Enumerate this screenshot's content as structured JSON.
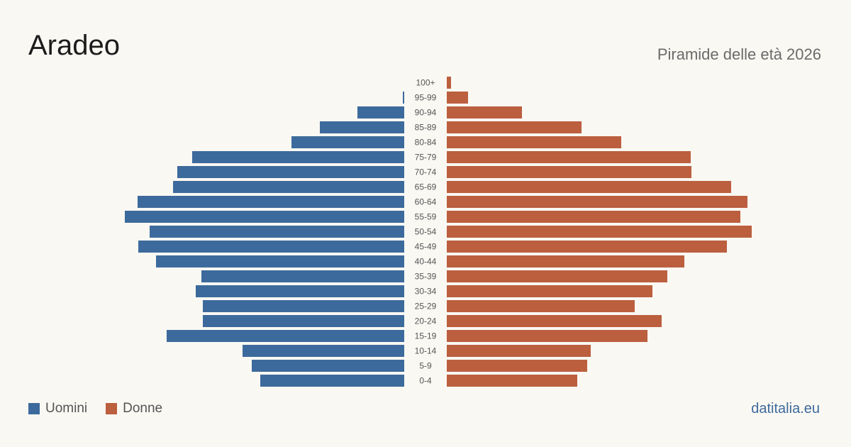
{
  "header": {
    "title": "Aradeo",
    "subtitle": "Piramide delle età 2026"
  },
  "legend": {
    "men_label": "Uomini",
    "women_label": "Donne"
  },
  "footer": {
    "brand": "datitalia.eu"
  },
  "colors": {
    "men": "#3d6a9c",
    "women": "#bb5f3f"
  },
  "chart_data": {
    "type": "bar",
    "orientation": "horizontal-pyramid",
    "title": "Aradeo",
    "subtitle": "Piramide delle età 2026",
    "categories": [
      "100+",
      "95-99",
      "90-94",
      "85-89",
      "80-84",
      "75-79",
      "70-74",
      "65-69",
      "60-64",
      "55-59",
      "50-54",
      "45-49",
      "40-44",
      "35-39",
      "30-34",
      "25-29",
      "20-24",
      "15-19",
      "10-14",
      "5-9",
      "0-4"
    ],
    "series": [
      {
        "name": "Uomini",
        "values": [
          0,
          2,
          66,
          119,
          159,
          299,
          320,
          326,
          376,
          394,
          359,
          375,
          350,
          286,
          294,
          284,
          284,
          335,
          228,
          215,
          203
        ]
      },
      {
        "name": "Donne",
        "values": [
          6,
          30,
          106,
          190,
          246,
          344,
          345,
          401,
          424,
          414,
          430,
          395,
          335,
          311,
          290,
          265,
          303,
          283,
          203,
          198,
          184
        ]
      }
    ],
    "legend": "bottom-left",
    "grid": false
  }
}
